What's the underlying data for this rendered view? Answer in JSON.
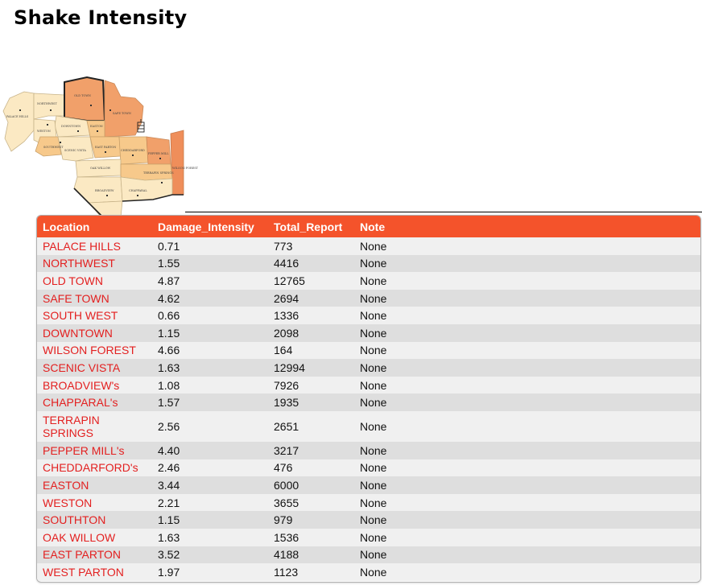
{
  "page": {
    "title": "Shake Intensity"
  },
  "map": {
    "icon": "district-map-icon",
    "colors": {
      "light": "#fbe9c3",
      "medium": "#f7c98b",
      "orange": "#f1a06a",
      "dark_orange": "#ef8e5a"
    }
  },
  "table": {
    "header_color": "#f4532b",
    "location_color": "#e32020",
    "columns": [
      "Location",
      "Damage_Intensity",
      "Total_Report",
      "Note"
    ],
    "rows": [
      {
        "location": "PALACE HILLS",
        "damage_intensity": "0.71",
        "total_report": "773",
        "note": "None"
      },
      {
        "location": "NORTHWEST",
        "damage_intensity": "1.55",
        "total_report": "4416",
        "note": "None"
      },
      {
        "location": "OLD TOWN",
        "damage_intensity": "4.87",
        "total_report": "12765",
        "note": "None"
      },
      {
        "location": "SAFE TOWN",
        "damage_intensity": "4.62",
        "total_report": "2694",
        "note": "None"
      },
      {
        "location": "SOUTH WEST",
        "damage_intensity": "0.66",
        "total_report": "1336",
        "note": "None"
      },
      {
        "location": "DOWNTOWN",
        "damage_intensity": "1.15",
        "total_report": "2098",
        "note": "None"
      },
      {
        "location": "WILSON FOREST",
        "damage_intensity": "4.66",
        "total_report": "164",
        "note": "None"
      },
      {
        "location": "SCENIC VISTA",
        "damage_intensity": "1.63",
        "total_report": "12994",
        "note": "None"
      },
      {
        "location": "BROADVIEW's",
        "damage_intensity": "1.08",
        "total_report": "7926",
        "note": "None"
      },
      {
        "location": "CHAPPARAL's",
        "damage_intensity": "1.57",
        "total_report": "1935",
        "note": "None"
      },
      {
        "location": "TERRAPIN SPRINGS",
        "damage_intensity": "2.56",
        "total_report": "2651",
        "note": "None"
      },
      {
        "location": "PEPPER MILL's",
        "damage_intensity": "4.40",
        "total_report": "3217",
        "note": "None"
      },
      {
        "location": "CHEDDARFORD's",
        "damage_intensity": "2.46",
        "total_report": "476",
        "note": "None"
      },
      {
        "location": "EASTON",
        "damage_intensity": "3.44",
        "total_report": "6000",
        "note": "None"
      },
      {
        "location": "WESTON",
        "damage_intensity": "2.21",
        "total_report": "3655",
        "note": "None"
      },
      {
        "location": "SOUTHTON",
        "damage_intensity": "1.15",
        "total_report": "979",
        "note": "None"
      },
      {
        "location": "OAK WILLOW",
        "damage_intensity": "1.63",
        "total_report": "1536",
        "note": "None"
      },
      {
        "location": "EAST PARTON",
        "damage_intensity": "3.52",
        "total_report": "4188",
        "note": "None"
      },
      {
        "location": "WEST PARTON",
        "damage_intensity": "1.97",
        "total_report": "1123",
        "note": "None"
      }
    ]
  }
}
